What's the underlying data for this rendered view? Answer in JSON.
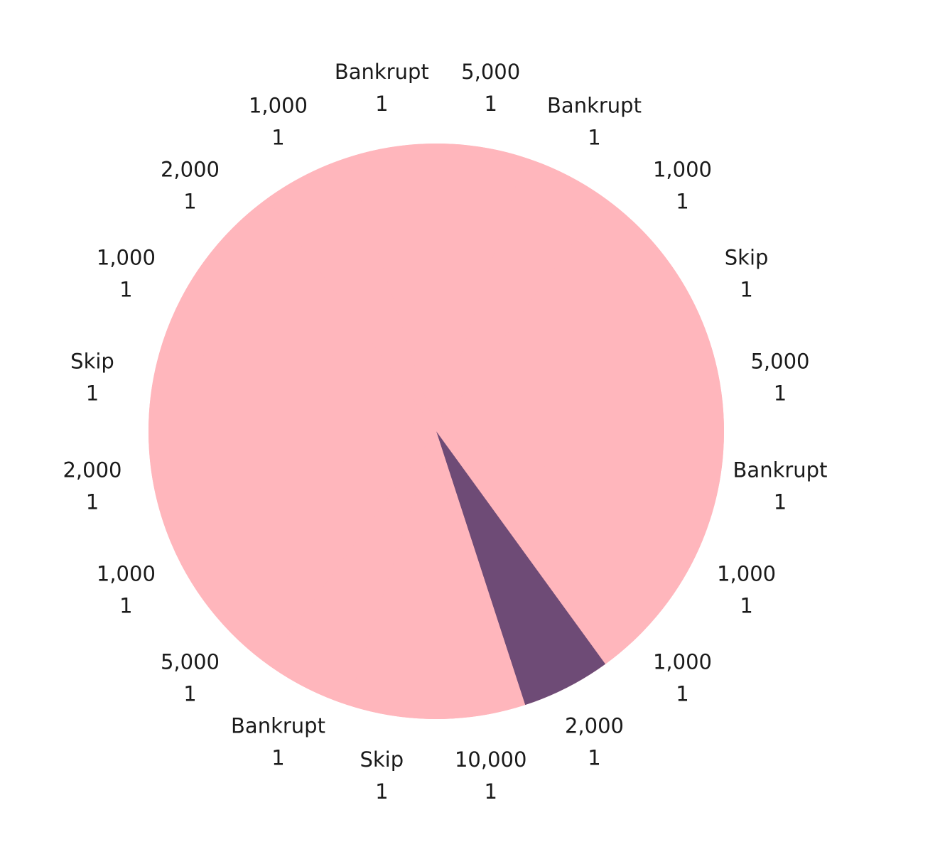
{
  "chart_data": {
    "type": "pie",
    "title": "",
    "legend": "none",
    "slices": [
      {
        "label": "5,000",
        "value": 1
      },
      {
        "label": "Bankrupt",
        "value": 1
      },
      {
        "label": "1,000",
        "value": 1
      },
      {
        "label": "Skip",
        "value": 1
      },
      {
        "label": "5,000",
        "value": 1
      },
      {
        "label": "Bankrupt",
        "value": 1
      },
      {
        "label": "1,000",
        "value": 1
      },
      {
        "label": "1,000",
        "value": 1
      },
      {
        "label": "2,000",
        "value": 1
      },
      {
        "label": "10,000",
        "value": 1
      },
      {
        "label": "Skip",
        "value": 1
      },
      {
        "label": "Bankrupt",
        "value": 1
      },
      {
        "label": "5,000",
        "value": 1
      },
      {
        "label": "1,000",
        "value": 1
      },
      {
        "label": "2,000",
        "value": 1
      },
      {
        "label": "Skip",
        "value": 1
      },
      {
        "label": "1,000",
        "value": 1
      },
      {
        "label": "2,000",
        "value": 1
      },
      {
        "label": "1,000",
        "value": 1
      },
      {
        "label": "Bankrupt",
        "value": 1
      }
    ],
    "highlight": {
      "index": 8,
      "span": 1
    },
    "colors": {
      "base": "#ffb6bc",
      "highlight": "#6e4b76",
      "label": "#1a1a1a"
    }
  }
}
